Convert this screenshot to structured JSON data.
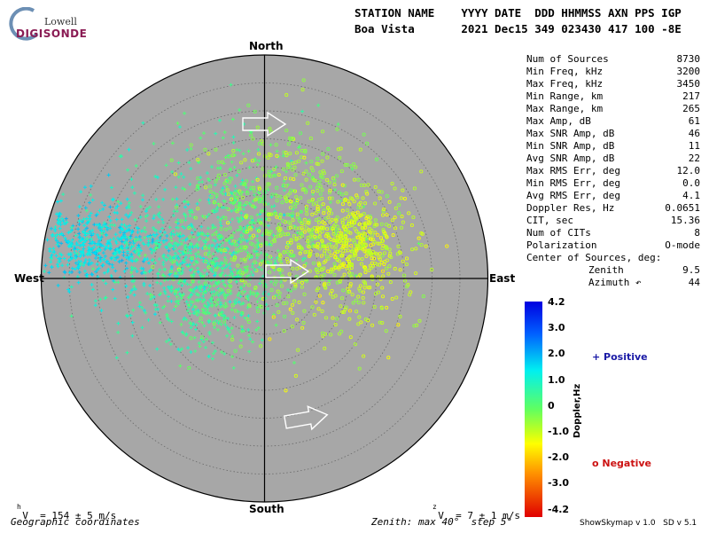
{
  "logo": {
    "line1": "Lowell",
    "line2": "DIGISONDE"
  },
  "header": {
    "line1": "STATION NAME    YYYY DATE  DDD HHMMSS AXN PPS IGP",
    "line2": "Boa Vista       2021 Dec15 349 023430 417 100 -8E"
  },
  "directions": {
    "north": "North",
    "south": "South",
    "west": "West",
    "east": "East"
  },
  "stats": [
    {
      "label": "Num of Sources",
      "value": "8730"
    },
    {
      "label": "Min Freq, kHz",
      "value": "3200"
    },
    {
      "label": "Max Freq, kHz",
      "value": "3450"
    },
    {
      "label": "Min Range, km",
      "value": "217"
    },
    {
      "label": "Max Range, km",
      "value": "265"
    },
    {
      "label": "Max Amp, dB",
      "value": "61"
    },
    {
      "label": "Max SNR Amp, dB",
      "value": "46"
    },
    {
      "label": "Min SNR Amp, dB",
      "value": "11"
    },
    {
      "label": "Avg SNR Amp, dB",
      "value": "22"
    },
    {
      "label": "Max RMS Err, deg",
      "value": "12.0"
    },
    {
      "label": "Min RMS Err, deg",
      "value": "0.0"
    },
    {
      "label": "Avg RMS Err, deg",
      "value": "4.1"
    },
    {
      "label": "Doppler Res, Hz",
      "value": "0.0651"
    },
    {
      "label": "CIT, sec",
      "value": "15.36"
    },
    {
      "label": "Num of CITs",
      "value": "8"
    },
    {
      "label": "Polarization",
      "value": "O-mode"
    },
    {
      "label": "Center of Sources, deg:",
      "value": ""
    },
    {
      "label": "Zenith",
      "value": "9.5",
      "indent": true
    },
    {
      "label": "Azimuth ↶",
      "value": "44",
      "indent": true
    }
  ],
  "colorbar": {
    "ticks": [
      "4.2",
      "3.0",
      "2.0",
      "1.0",
      "0",
      "-1.0",
      "-2.0",
      "-3.0",
      "-4.2"
    ],
    "label": "Doppler,Hz"
  },
  "legend": {
    "positive": "+ Positive",
    "negative": "o Negative"
  },
  "footer": {
    "vh": "V  = 154 ± 5 m/s",
    "vh_sub": "h",
    "vz": "V  = 7 ± 1 m/s",
    "vz_sub": "z",
    "coords": "Geographic coordinates",
    "zenith": "Zenith: max 40°  step 5°",
    "software": "ShowSkymap v 1.0   SD v 5.1"
  },
  "colors": {
    "plot_bg": "#a7a7a7",
    "ring": "#6a6a6a"
  }
}
